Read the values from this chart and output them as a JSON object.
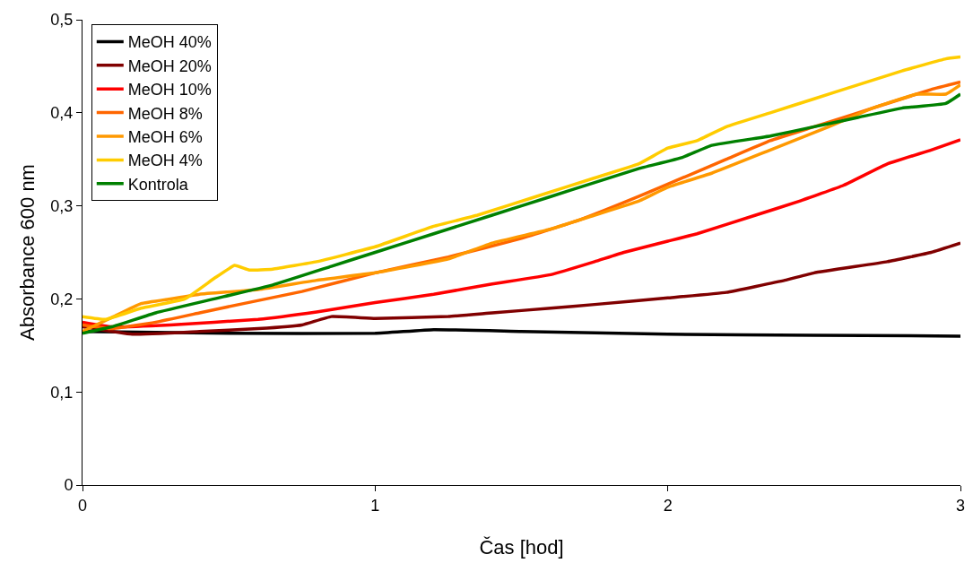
{
  "chart_data": {
    "type": "line",
    "xlabel": "Čas [hod]",
    "ylabel": "Absorbance 600 nm",
    "xlim": [
      0,
      3
    ],
    "xticks": [
      0,
      1,
      2,
      3
    ],
    "ylim": [
      0,
      0.5
    ],
    "yticks": [
      {
        "value": 0,
        "label": "0"
      },
      {
        "value": 0.1,
        "label": "0,1"
      },
      {
        "value": 0.2,
        "label": "0,2"
      },
      {
        "value": 0.3,
        "label": "0,3"
      },
      {
        "value": 0.4,
        "label": "0,4"
      },
      {
        "value": 0.5,
        "label": "0,5"
      }
    ],
    "grid": false,
    "legend": "top left",
    "marker": "none",
    "line_style": "solid",
    "series": [
      {
        "name": "MeOH 40%",
        "color": "#000000",
        "x": [
          0,
          0.5,
          1,
          1.2,
          1.5,
          2,
          2.5,
          3
        ],
        "values": [
          0.165,
          0.163,
          0.163,
          0.167,
          0.165,
          0.162,
          0.161,
          0.16
        ]
      },
      {
        "name": "MeOH 20%",
        "color": "#800000",
        "x": [
          0,
          0.17,
          0.4,
          0.6,
          0.75,
          0.85,
          1,
          1.25,
          1.4,
          1.6,
          1.75,
          2,
          2.2,
          2.4,
          2.5,
          2.75,
          2.9,
          3
        ],
        "values": [
          0.17,
          0.162,
          0.165,
          0.168,
          0.172,
          0.181,
          0.179,
          0.181,
          0.185,
          0.19,
          0.194,
          0.201,
          0.207,
          0.22,
          0.228,
          0.24,
          0.25,
          0.26
        ]
      },
      {
        "name": "MeOH 10%",
        "color": "#ff0000",
        "x": [
          0,
          0.1,
          0.3,
          0.6,
          0.8,
          1,
          1.2,
          1.4,
          1.6,
          1.75,
          1.85,
          2,
          2.1,
          2.3,
          2.45,
          2.6,
          2.75,
          2.9,
          3
        ],
        "values": [
          0.175,
          0.17,
          0.172,
          0.178,
          0.186,
          0.196,
          0.205,
          0.216,
          0.226,
          0.24,
          0.25,
          0.262,
          0.27,
          0.29,
          0.305,
          0.322,
          0.345,
          0.36,
          0.371
        ]
      },
      {
        "name": "MeOH 8%",
        "color": "#ff6600",
        "x": [
          0,
          0.1,
          0.25,
          0.4,
          0.55,
          0.75,
          1,
          1.25,
          1.5,
          1.7,
          1.9,
          2.05,
          2.2,
          2.35,
          2.5,
          2.65,
          2.8,
          2.9,
          3
        ],
        "values": [
          0.172,
          0.168,
          0.175,
          0.185,
          0.195,
          0.208,
          0.228,
          0.245,
          0.265,
          0.285,
          0.31,
          0.33,
          0.35,
          0.37,
          0.385,
          0.4,
          0.415,
          0.425,
          0.433
        ]
      },
      {
        "name": "MeOH 6%",
        "color": "#ff9900",
        "x": [
          0,
          0.1,
          0.2,
          0.3,
          0.4,
          0.6,
          0.8,
          1,
          1.25,
          1.4,
          1.6,
          1.75,
          1.9,
          2,
          2.15,
          2.35,
          2.55,
          2.7,
          2.85,
          2.95,
          3
        ],
        "values": [
          0.165,
          0.18,
          0.195,
          0.2,
          0.205,
          0.21,
          0.22,
          0.228,
          0.243,
          0.26,
          0.275,
          0.29,
          0.305,
          0.32,
          0.335,
          0.36,
          0.385,
          0.405,
          0.42,
          0.42,
          0.43
        ]
      },
      {
        "name": "MeOH 4%",
        "color": "#ffcc00",
        "x": [
          0,
          0.08,
          0.2,
          0.35,
          0.45,
          0.52,
          0.57,
          0.65,
          0.8,
          1,
          1.2,
          1.35,
          1.55,
          1.75,
          1.9,
          2,
          2.1,
          2.2,
          2.35,
          2.5,
          2.65,
          2.8,
          2.95,
          3
        ],
        "values": [
          0.181,
          0.178,
          0.19,
          0.2,
          0.222,
          0.236,
          0.231,
          0.232,
          0.24,
          0.256,
          0.278,
          0.29,
          0.31,
          0.33,
          0.345,
          0.362,
          0.37,
          0.385,
          0.4,
          0.415,
          0.43,
          0.445,
          0.458,
          0.46
        ]
      },
      {
        "name": "Kontrola",
        "color": "#008000",
        "x": [
          0,
          0.1,
          0.25,
          0.45,
          0.65,
          0.85,
          1,
          1.2,
          1.4,
          1.6,
          1.75,
          1.9,
          2.05,
          2.15,
          2.35,
          2.5,
          2.65,
          2.8,
          2.95,
          3
        ],
        "values": [
          0.163,
          0.17,
          0.185,
          0.2,
          0.215,
          0.235,
          0.25,
          0.27,
          0.29,
          0.31,
          0.325,
          0.34,
          0.352,
          0.365,
          0.375,
          0.385,
          0.395,
          0.405,
          0.41,
          0.42
        ]
      }
    ]
  }
}
